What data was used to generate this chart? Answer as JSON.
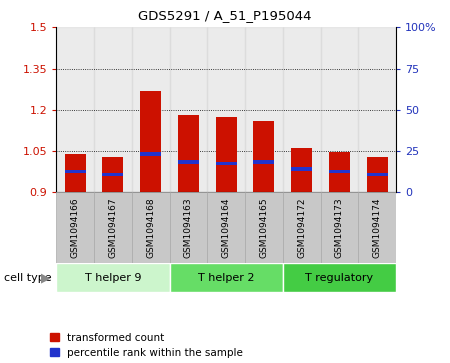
{
  "title": "GDS5291 / A_51_P195044",
  "samples": [
    "GSM1094166",
    "GSM1094167",
    "GSM1094168",
    "GSM1094163",
    "GSM1094164",
    "GSM1094165",
    "GSM1094172",
    "GSM1094173",
    "GSM1094174"
  ],
  "transformed_counts": [
    1.04,
    1.03,
    1.27,
    1.18,
    1.175,
    1.16,
    1.06,
    1.045,
    1.03
  ],
  "blue_marker_values": [
    0.975,
    0.965,
    1.04,
    1.01,
    1.005,
    1.01,
    0.985,
    0.975,
    0.965
  ],
  "ylim_left": [
    0.9,
    1.5
  ],
  "ylim_right": [
    0,
    100
  ],
  "yticks_left": [
    0.9,
    1.05,
    1.2,
    1.35,
    1.5
  ],
  "ytick_labels_left": [
    "0.9",
    "1.05",
    "1.2",
    "1.35",
    "1.5"
  ],
  "yticks_right": [
    0,
    25,
    50,
    75,
    100
  ],
  "ytick_labels_right": [
    "0",
    "25",
    "50",
    "75",
    "100%"
  ],
  "cell_groups": [
    {
      "label": "T helper 9",
      "start": 0,
      "end": 3,
      "color": "#ccf5cc"
    },
    {
      "label": "T helper 2",
      "start": 3,
      "end": 6,
      "color": "#66dd66"
    },
    {
      "label": "T regulatory",
      "start": 6,
      "end": 9,
      "color": "#44cc44"
    }
  ],
  "bar_color": "#cc1100",
  "blue_color": "#2233cc",
  "bar_width": 0.55,
  "background_plot": "#ffffff",
  "tick_color_left": "#cc1100",
  "tick_color_right": "#2233bb",
  "grid_color": "#000000",
  "legend_labels": [
    "transformed count",
    "percentile rank within the sample"
  ],
  "cell_type_label": "cell type",
  "label_box_color": "#c8c8c8",
  "label_box_edge": "#aaaaaa"
}
